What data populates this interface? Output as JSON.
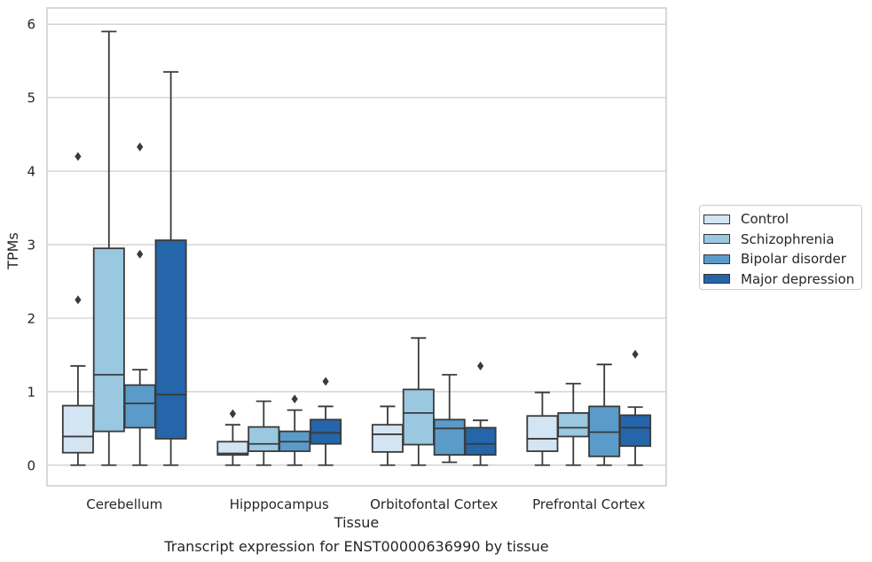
{
  "chart_data": {
    "type": "box",
    "caption": "Transcript expression for ENST00000636990 by tissue",
    "xlabel": "Tissue",
    "ylabel": "TPMs",
    "ylim": [
      -0.28,
      6.22
    ],
    "yticks": [
      0,
      1,
      2,
      3,
      4,
      5,
      6
    ],
    "grid": "horizontal",
    "legend_position": "right",
    "categories": [
      "Cerebellum",
      "Hipppocampus",
      "Orbitofontal Cortex",
      "Prefrontal Cortex"
    ],
    "series": [
      {
        "name": "Control",
        "color": "#d3e4f3",
        "boxes": [
          {
            "whislo": 0.0,
            "q1": 0.17,
            "median": 0.39,
            "q3": 0.81,
            "whishi": 1.35,
            "fliers": [
              2.25,
              4.2
            ]
          },
          {
            "whislo": 0.0,
            "q1": 0.14,
            "median": 0.16,
            "q3": 0.32,
            "whishi": 0.55,
            "fliers": [
              0.7
            ]
          },
          {
            "whislo": 0.0,
            "q1": 0.18,
            "median": 0.42,
            "q3": 0.55,
            "whishi": 0.8,
            "fliers": []
          },
          {
            "whislo": 0.0,
            "q1": 0.19,
            "median": 0.36,
            "q3": 0.67,
            "whishi": 0.99,
            "fliers": []
          }
        ]
      },
      {
        "name": "Schizophrenia",
        "color": "#9ac8e0",
        "boxes": [
          {
            "whislo": 0.0,
            "q1": 0.46,
            "median": 1.23,
            "q3": 2.95,
            "whishi": 5.9,
            "fliers": []
          },
          {
            "whislo": 0.0,
            "q1": 0.19,
            "median": 0.29,
            "q3": 0.52,
            "whishi": 0.87,
            "fliers": []
          },
          {
            "whislo": 0.0,
            "q1": 0.28,
            "median": 0.71,
            "q3": 1.03,
            "whishi": 1.73,
            "fliers": []
          },
          {
            "whislo": 0.0,
            "q1": 0.39,
            "median": 0.51,
            "q3": 0.71,
            "whishi": 1.11,
            "fliers": []
          }
        ]
      },
      {
        "name": "Bipolar disorder",
        "color": "#5b9bc9",
        "boxes": [
          {
            "whislo": 0.0,
            "q1": 0.51,
            "median": 0.84,
            "q3": 1.09,
            "whishi": 1.3,
            "fliers": [
              2.87,
              4.33
            ]
          },
          {
            "whislo": 0.0,
            "q1": 0.19,
            "median": 0.32,
            "q3": 0.46,
            "whishi": 0.75,
            "fliers": [
              0.9
            ]
          },
          {
            "whislo": 0.04,
            "q1": 0.14,
            "median": 0.5,
            "q3": 0.62,
            "whishi": 1.23,
            "fliers": []
          },
          {
            "whislo": 0.0,
            "q1": 0.12,
            "median": 0.45,
            "q3": 0.8,
            "whishi": 1.37,
            "fliers": []
          }
        ]
      },
      {
        "name": "Major depression",
        "color": "#2565a9",
        "boxes": [
          {
            "whislo": 0.0,
            "q1": 0.36,
            "median": 0.96,
            "q3": 3.06,
            "whishi": 5.35,
            "fliers": []
          },
          {
            "whislo": 0.0,
            "q1": 0.29,
            "median": 0.44,
            "q3": 0.62,
            "whishi": 0.8,
            "fliers": [
              1.14
            ]
          },
          {
            "whislo": 0.0,
            "q1": 0.14,
            "median": 0.29,
            "q3": 0.51,
            "whishi": 0.61,
            "fliers": [
              1.35
            ]
          },
          {
            "whislo": 0.0,
            "q1": 0.26,
            "median": 0.51,
            "q3": 0.68,
            "whishi": 0.79,
            "fliers": [
              1.51
            ]
          }
        ]
      }
    ]
  }
}
